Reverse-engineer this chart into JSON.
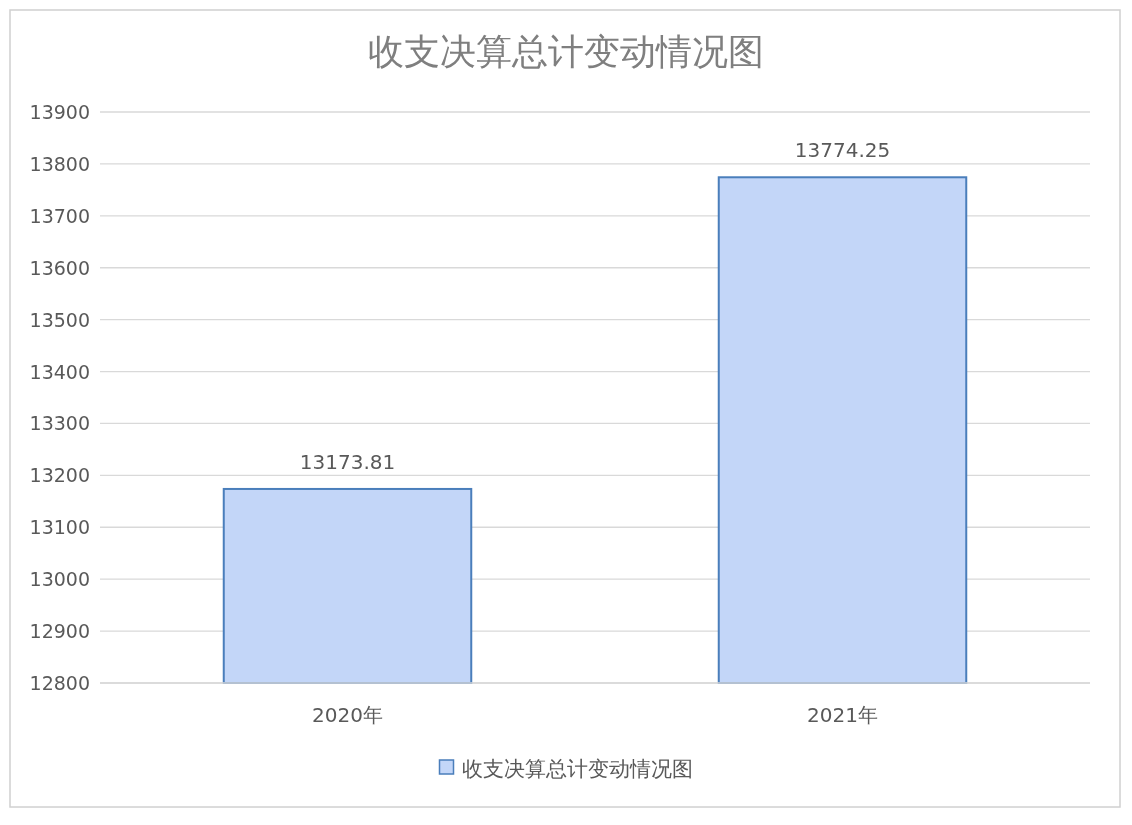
{
  "chart_data": {
    "type": "bar",
    "title": "收支决算总计变动情况图",
    "categories": [
      "2020年",
      "2021年"
    ],
    "series": [
      {
        "name": "收支决算总计变动情况图",
        "color": "#c3d6f8",
        "values": [
          13173.81,
          13774.25
        ]
      }
    ],
    "ylim": [
      12800,
      13900
    ],
    "yticks": [
      12800,
      12900,
      13000,
      13100,
      13200,
      13300,
      13400,
      13500,
      13600,
      13700,
      13800,
      13900
    ],
    "grid": "y",
    "legend": "bottom",
    "data_labels": true
  }
}
